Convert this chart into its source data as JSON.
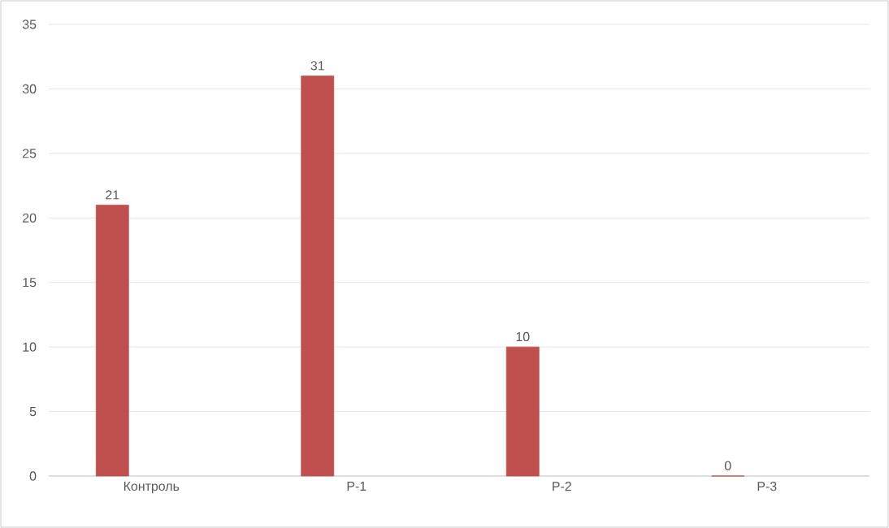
{
  "chart_data": {
    "type": "bar",
    "categories": [
      "Контроль",
      "Р-1",
      "Р-2",
      "Р-3"
    ],
    "values": [
      21,
      31,
      10,
      0
    ],
    "color": "#c0504d",
    "ylim": [
      0,
      35
    ],
    "yticks": [
      0,
      5,
      10,
      15,
      20,
      25,
      30,
      35
    ],
    "grid": "y",
    "data_labels": true
  }
}
